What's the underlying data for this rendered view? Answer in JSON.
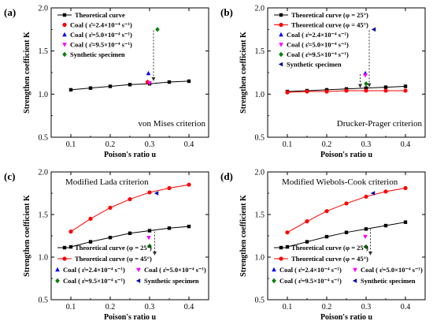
{
  "chart_data": [
    {
      "id": "a",
      "panel_label": "(a)",
      "type": "scatter",
      "xlabel": "Poison's ratio u",
      "ylabel": "Strengthen coefficient K",
      "xlim": [
        0.05,
        0.45
      ],
      "ylim": [
        0.5,
        2.0
      ],
      "xticks": [
        "0.1",
        "0.2",
        "0.3",
        "0.4"
      ],
      "yticks": [
        "0.5",
        "1.0",
        "1.5",
        "2.0"
      ],
      "annotation": "von Mises criterion",
      "annotation_position": "bottom-right",
      "legend_position": "top-left",
      "legend_columns": 1,
      "series": [
        {
          "name": "Theoretical curve",
          "kind": "line",
          "color": "#000000",
          "marker": "square",
          "x": [
            0.1,
            0.15,
            0.2,
            0.25,
            0.3,
            0.35,
            0.4
          ],
          "y": [
            1.05,
            1.07,
            1.09,
            1.11,
            1.12,
            1.14,
            1.15
          ]
        },
        {
          "name": "Coal ( ε̇=2.4×10⁻⁴ s⁻¹)",
          "kind": "scatter",
          "color": "#ff0000",
          "marker": "circle",
          "x": [
            0.295
          ],
          "y": [
            1.14
          ]
        },
        {
          "name": "Coal ( ε̇=5.0×10⁻⁴ s⁻¹)",
          "kind": "scatter",
          "color": "#0000ff",
          "marker": "triangle-up",
          "x": [
            0.297
          ],
          "y": [
            1.24
          ]
        },
        {
          "name": "Coal ( ε̇=9.5×10⁻⁴ s⁻¹)",
          "kind": "scatter",
          "color": "#ff00ff",
          "marker": "triangle-down",
          "x": [
            0.3
          ],
          "y": [
            1.13
          ]
        },
        {
          "name": "Synthetic specimen",
          "kind": "scatter",
          "color": "#008000",
          "marker": "diamond",
          "x": [
            0.32
          ],
          "y": [
            1.75
          ]
        }
      ],
      "arrows": [
        {
          "x": 0.31,
          "y1": 1.74,
          "y2": 1.15
        }
      ]
    },
    {
      "id": "b",
      "panel_label": "(b)",
      "type": "scatter",
      "xlabel": "Poison's ratio u",
      "ylabel": "Strengthen coefficient K",
      "xlim": [
        0.05,
        0.45
      ],
      "ylim": [
        0.5,
        2.0
      ],
      "xticks": [
        "0.1",
        "0.2",
        "0.3",
        "0.4"
      ],
      "yticks": [
        "0.5",
        "1.0",
        "1.5",
        "2.0"
      ],
      "annotation": "Drucker-Prager criterion",
      "annotation_position": "bottom-right",
      "legend_position": "top-left",
      "legend_columns": 1,
      "series": [
        {
          "name": "Theoretical curve (φ = 25°)",
          "kind": "line",
          "color": "#000000",
          "marker": "square",
          "x": [
            0.1,
            0.15,
            0.2,
            0.25,
            0.3,
            0.35,
            0.4
          ],
          "y": [
            1.03,
            1.04,
            1.05,
            1.06,
            1.07,
            1.08,
            1.09
          ]
        },
        {
          "name": "Theoretical curve (φ = 45°)",
          "kind": "line",
          "color": "#ff0000",
          "marker": "circle",
          "x": [
            0.1,
            0.15,
            0.2,
            0.25,
            0.3,
            0.35,
            0.4
          ],
          "y": [
            1.02,
            1.03,
            1.03,
            1.04,
            1.04,
            1.04,
            1.04
          ]
        },
        {
          "name": "Coal ( ε̇=2.4×10⁻⁴ s⁻¹)",
          "kind": "scatter",
          "color": "#0000ff",
          "marker": "triangle-up",
          "x": [
            0.298
          ],
          "y": [
            1.24
          ]
        },
        {
          "name": "Coal ( ε̇=5.0×10⁻⁴ s⁻¹)",
          "kind": "scatter",
          "color": "#ff00ff",
          "marker": "triangle-down",
          "x": [
            0.298
          ],
          "y": [
            1.22
          ]
        },
        {
          "name": "Coal ( ε̇=9.5×10⁻⁴ s⁻¹)",
          "kind": "scatter",
          "color": "#008000",
          "marker": "diamond",
          "x": [
            0.3
          ],
          "y": [
            1.12
          ]
        },
        {
          "name": "Synthetic specimen",
          "kind": "scatter",
          "color": "#0000aa",
          "marker": "triangle-left",
          "x": [
            0.32
          ],
          "y": [
            1.75
          ]
        }
      ],
      "arrows": [
        {
          "x": 0.285,
          "y1": 1.23,
          "y2": 1.07
        },
        {
          "x": 0.308,
          "y1": 1.74,
          "y2": 1.08
        }
      ]
    },
    {
      "id": "c",
      "panel_label": "(c)",
      "type": "scatter",
      "xlabel": "Poison's ratio u",
      "ylabel": "Strengthen coefficient K",
      "xlim": [
        0.05,
        0.45
      ],
      "ylim": [
        0.5,
        2.0
      ],
      "xticks": [
        "0.1",
        "0.2",
        "0.3",
        "0.4"
      ],
      "yticks": [
        "0.5",
        "1.0",
        "1.5",
        "2.0"
      ],
      "annotation": "Modified Lada criterion",
      "annotation_position": "top-left",
      "legend_position": "bottom",
      "legend_columns": 2,
      "series": [
        {
          "name": "Theoretical curve (φ = 25°)",
          "kind": "line",
          "color": "#000000",
          "marker": "square",
          "x": [
            0.1,
            0.15,
            0.2,
            0.25,
            0.3,
            0.35,
            0.4
          ],
          "y": [
            1.12,
            1.18,
            1.23,
            1.28,
            1.31,
            1.34,
            1.36
          ]
        },
        {
          "name": "Theoretical curve (φ = 45°)",
          "kind": "line",
          "color": "#ff0000",
          "marker": "circle",
          "x": [
            0.1,
            0.15,
            0.2,
            0.25,
            0.3,
            0.35,
            0.4
          ],
          "y": [
            1.3,
            1.45,
            1.58,
            1.68,
            1.76,
            1.81,
            1.85
          ]
        },
        {
          "name": "Coal ( ε̇=2.4×10⁻⁴ s⁻¹)",
          "kind": "scatter",
          "color": "#0000ff",
          "marker": "triangle-up",
          "x": [],
          "y": []
        },
        {
          "name": "Coal ( ε̇=5.0×10⁻⁴ s⁻¹)",
          "kind": "scatter",
          "color": "#ff00ff",
          "marker": "triangle-down",
          "x": [
            0.298
          ],
          "y": [
            1.23
          ]
        },
        {
          "name": "Coal ( ε̇=9.5×10⁻⁴ s⁻¹)",
          "kind": "scatter",
          "color": "#008000",
          "marker": "diamond",
          "x": [
            0.3
          ],
          "y": [
            1.13
          ]
        },
        {
          "name": "Synthetic specimen",
          "kind": "scatter",
          "color": "#0000aa",
          "marker": "triangle-left",
          "x": [
            0.318
          ],
          "y": [
            1.75
          ]
        }
      ],
      "arrows": [
        {
          "x": 0.313,
          "y1": 1.3,
          "y2": 1.02
        }
      ]
    },
    {
      "id": "d",
      "panel_label": "(d)",
      "type": "scatter",
      "xlabel": "Poison's ratio u",
      "ylabel": "Strengthen coefficient K",
      "xlim": [
        0.05,
        0.45
      ],
      "ylim": [
        0.5,
        2.0
      ],
      "xticks": [
        "0.1",
        "0.2",
        "0.3",
        "0.4"
      ],
      "yticks": [
        "0.5",
        "1.0",
        "1.5",
        "2.0"
      ],
      "annotation": "Modified Wiebols-Cook criterion",
      "annotation_position": "top-left",
      "legend_position": "bottom",
      "legend_columns": 2,
      "series": [
        {
          "name": "Theoretical curve (φ = 25°)",
          "kind": "line",
          "color": "#000000",
          "marker": "square",
          "x": [
            0.1,
            0.15,
            0.2,
            0.25,
            0.3,
            0.35,
            0.4
          ],
          "y": [
            1.12,
            1.18,
            1.24,
            1.29,
            1.33,
            1.37,
            1.41
          ]
        },
        {
          "name": "Theoretical curve (φ = 45°)",
          "kind": "line",
          "color": "#ff0000",
          "marker": "circle",
          "x": [
            0.1,
            0.15,
            0.2,
            0.25,
            0.3,
            0.35,
            0.4
          ],
          "y": [
            1.29,
            1.42,
            1.54,
            1.63,
            1.71,
            1.77,
            1.81
          ]
        },
        {
          "name": "Coal ( ε̇=2.4×10⁻⁴ s⁻¹)",
          "kind": "scatter",
          "color": "#0000ff",
          "marker": "triangle-up",
          "x": [],
          "y": []
        },
        {
          "name": "Coal ( ε̇=5.0×10⁻⁴ s⁻¹)",
          "kind": "scatter",
          "color": "#ff00ff",
          "marker": "triangle-down",
          "x": [
            0.298
          ],
          "y": [
            1.24
          ]
        },
        {
          "name": "Coal ( ε̇=9.5×10⁻⁴ s⁻¹)",
          "kind": "scatter",
          "color": "#008000",
          "marker": "diamond",
          "x": [
            0.3
          ],
          "y": [
            1.12
          ]
        },
        {
          "name": "Synthetic specimen",
          "kind": "scatter",
          "color": "#0000aa",
          "marker": "triangle-left",
          "x": [
            0.318
          ],
          "y": [
            1.75
          ]
        }
      ],
      "arrows": [
        {
          "x": 0.311,
          "y1": 1.33,
          "y2": 1.02
        }
      ]
    }
  ]
}
